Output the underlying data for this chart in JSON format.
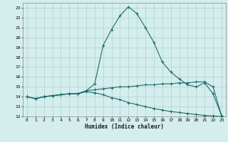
{
  "title": "",
  "xlabel": "Humidex (Indice chaleur)",
  "bg_color": "#d4eeed",
  "line_color": "#1e6b6b",
  "grid_color": "#b0d0cc",
  "xlim": [
    -0.5,
    23.5
  ],
  "ylim": [
    12,
    23.5
  ],
  "xticks": [
    0,
    1,
    2,
    3,
    4,
    5,
    6,
    7,
    8,
    9,
    10,
    11,
    12,
    13,
    14,
    15,
    16,
    17,
    18,
    19,
    20,
    21,
    22,
    23
  ],
  "yticks": [
    12,
    13,
    14,
    15,
    16,
    17,
    18,
    19,
    20,
    21,
    22,
    23
  ],
  "line1_x": [
    0,
    1,
    2,
    3,
    4,
    5,
    6,
    7,
    8,
    9,
    10,
    11,
    12,
    13,
    14,
    15,
    16,
    17,
    18,
    19,
    20,
    21,
    22,
    23
  ],
  "line1_y": [
    14.0,
    13.8,
    14.0,
    14.1,
    14.2,
    14.3,
    14.3,
    14.6,
    15.3,
    19.2,
    20.8,
    22.2,
    23.1,
    22.4,
    21.0,
    19.5,
    17.5,
    16.5,
    15.8,
    15.2,
    15.0,
    15.4,
    14.3,
    12.1
  ],
  "line2_x": [
    0,
    1,
    2,
    3,
    4,
    5,
    6,
    7,
    8,
    9,
    10,
    11,
    12,
    13,
    14,
    15,
    16,
    17,
    18,
    19,
    20,
    21,
    22,
    23
  ],
  "line2_y": [
    14.0,
    13.8,
    14.0,
    14.1,
    14.2,
    14.3,
    14.3,
    14.6,
    14.7,
    14.8,
    14.9,
    15.0,
    15.0,
    15.1,
    15.2,
    15.2,
    15.3,
    15.3,
    15.4,
    15.4,
    15.5,
    15.5,
    15.0,
    12.1
  ],
  "line3_x": [
    0,
    1,
    2,
    3,
    4,
    5,
    6,
    7,
    8,
    9,
    10,
    11,
    12,
    13,
    14,
    15,
    16,
    17,
    18,
    19,
    20,
    21,
    22,
    23
  ],
  "line3_y": [
    14.0,
    13.8,
    14.0,
    14.1,
    14.2,
    14.3,
    14.3,
    14.5,
    14.4,
    14.2,
    13.9,
    13.7,
    13.4,
    13.2,
    13.0,
    12.8,
    12.65,
    12.5,
    12.4,
    12.3,
    12.2,
    12.1,
    12.05,
    12.0
  ]
}
